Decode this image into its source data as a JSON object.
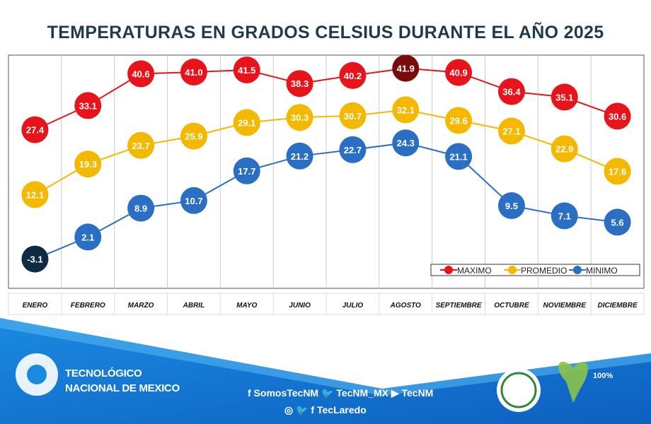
{
  "chart_data": {
    "type": "line",
    "title": "TEMPERATURAS EN GRADOS CELSIUS DURANTE EL AÑO 2025",
    "categories": [
      "ENERO",
      "FEBRERO",
      "MARZO",
      "ABRIL",
      "MAYO",
      "JUNIO",
      "JULIO",
      "AGOSTO",
      "SEPTIEMBRE",
      "OCTUBRE",
      "NOVIEMBRE",
      "DICIEMBRE"
    ],
    "ylim": [
      -10,
      45
    ],
    "grid": true,
    "legend_position": "bottom-right",
    "series": [
      {
        "name": "MAXIMO",
        "color": "#e8141c",
        "highlight": {
          "index": 7,
          "color": "#7a0b0b"
        },
        "values": [
          27.4,
          33.1,
          40.6,
          41.0,
          41.5,
          38.3,
          40.2,
          41.9,
          40.9,
          36.4,
          35.1,
          30.6
        ]
      },
      {
        "name": "PROMEDIO",
        "color": "#f5b800",
        "values": [
          12.1,
          19.3,
          23.7,
          25.9,
          29.1,
          30.3,
          30.7,
          32.1,
          29.6,
          27.1,
          22.9,
          17.6
        ]
      },
      {
        "name": "MINIMO",
        "color": "#2a6fc4",
        "highlight": {
          "index": 0,
          "color": "#0e2a45"
        },
        "values": [
          -3.1,
          2.1,
          8.9,
          10.7,
          17.7,
          21.2,
          22.7,
          24.3,
          21.1,
          9.5,
          7.1,
          5.6
        ]
      }
    ]
  },
  "footer": {
    "org_line1": "TECNOLÓGICO",
    "org_line2": "NACIONAL DE MEXICO",
    "social_line1": "f SomosTecNM  🐦 TecNM_MX  ▶ TecNM",
    "social_line2": "◎ 🐦 f  TecLaredo",
    "logo_institute": "INSTITUTO TECNOLÓGICO NUEVO LAREDO",
    "logo_plastic": "ESPACIO 100% LIBRE DE PLÁSTICO DE UN SOLO USO"
  }
}
